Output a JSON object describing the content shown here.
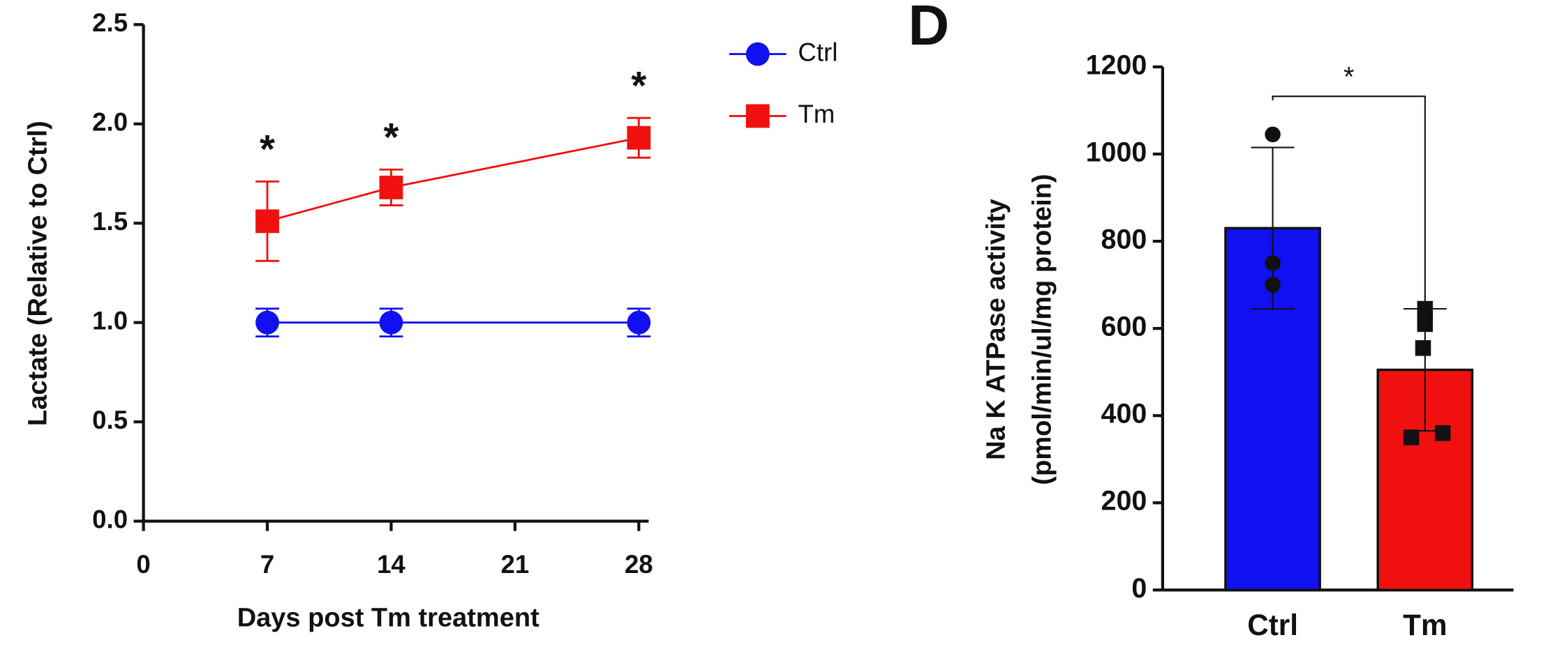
{
  "chart_data": [
    {
      "type": "line",
      "x_label": "Days post Tm treatment",
      "y_label": "Lactate (Relative to Ctrl)",
      "xlim": [
        0,
        28
      ],
      "xticks": [
        0,
        7,
        14,
        21,
        28
      ],
      "ylim": [
        0,
        2.5
      ],
      "yticks": [
        {
          "value": 0,
          "label": "0.0"
        },
        {
          "value": 0.5,
          "label": "0.5"
        },
        {
          "value": 1,
          "label": "1.0"
        },
        {
          "value": 1.5,
          "label": "1.5"
        },
        {
          "value": 2,
          "label": "2.0"
        },
        {
          "value": 2.5,
          "label": "2.5"
        }
      ],
      "legend": "top-right",
      "x": [
        7,
        14,
        28
      ],
      "series": [
        {
          "name": "Ctrl",
          "color": "#1010f0",
          "marker": "circle",
          "values": [
            1.0,
            1.0,
            1.0
          ],
          "errors": [
            0.07,
            0.07,
            0.07
          ]
        },
        {
          "name": "Tm",
          "color": "#f01010",
          "marker": "square",
          "values": [
            1.51,
            1.68,
            1.93
          ],
          "errors": [
            0.2,
            0.09,
            0.1
          ],
          "annotations": [
            "*",
            "*",
            "*"
          ]
        }
      ]
    },
    {
      "type": "bar",
      "panel": "D",
      "y_label": [
        "Na K ATPase activity",
        "(pmol/min/ul/mg protein)"
      ],
      "ylim": [
        0,
        1200
      ],
      "yticks": [
        0,
        200,
        400,
        600,
        800,
        1000,
        1200
      ],
      "categories": [
        "Ctrl",
        "Tm"
      ],
      "colors": [
        "#1010f0",
        "#f01010"
      ],
      "values": [
        830,
        505
      ],
      "errors": [
        185,
        140
      ],
      "points": [
        [
          1045,
          750,
          700
        ],
        [
          645,
          610,
          555,
          360,
          350
        ]
      ],
      "significance": "*"
    }
  ]
}
